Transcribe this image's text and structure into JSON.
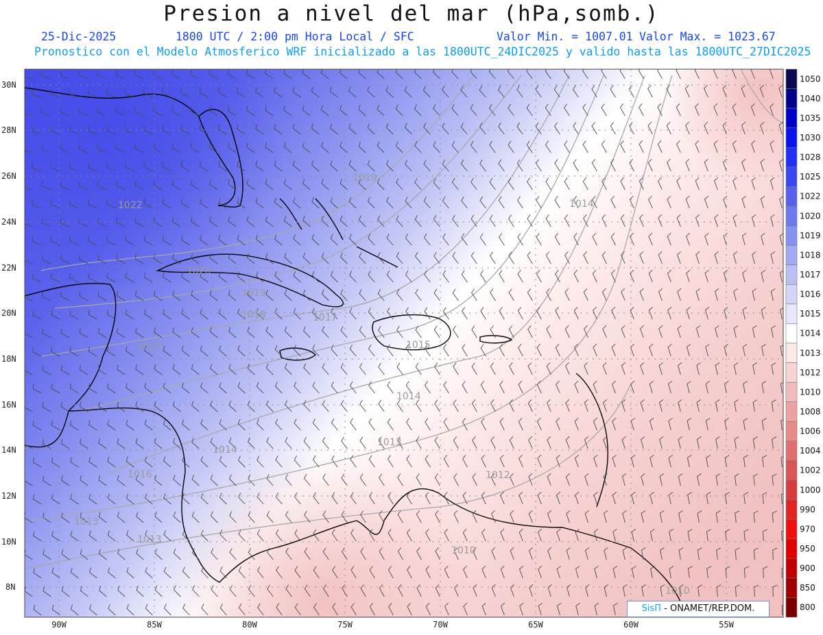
{
  "header": {
    "title": "Presion a nivel del mar (hPa,somb.)",
    "date": "25-Dic-2025",
    "time": "1800 UTC / 2:00 pm Hora Local / SFC",
    "min_value": "Valor Min. = 1007.01",
    "max_value": "Valor Max. = 1023.67",
    "description": "Pronostico con el Modelo Atmosferico WRF inicializado a las 1800UTC_24DIC2025 y valido hasta las  1800UTC_27DIC2025"
  },
  "map": {
    "lat_ticks": [
      "30N",
      "28N",
      "26N",
      "24N",
      "22N",
      "20N",
      "18N",
      "16N",
      "14N",
      "12N",
      "10N",
      "8N"
    ],
    "lon_ticks": [
      "90W",
      "85W",
      "80W",
      "75W",
      "70W",
      "65W",
      "60W",
      "55W"
    ],
    "isobar_labels": [
      "1022",
      "1019",
      "1014",
      "1020",
      "1019",
      "1018",
      "1017",
      "1017",
      "1015",
      "1014",
      "1013",
      "1014",
      "1016",
      "1012",
      "1013",
      "1013",
      "1010",
      "1010"
    ],
    "colors": {
      "high": "#5a62ec",
      "neutral": "#ffffff",
      "low": "#f4c2c2",
      "coast": "#000000",
      "wind_barb": "#555555",
      "grid": "#888888"
    }
  },
  "colorbar": {
    "levels": [
      "1050",
      "1040",
      "1035",
      "1030",
      "1028",
      "1025",
      "1022",
      "1020",
      "1019",
      "1018",
      "1017",
      "1016",
      "1015",
      "1014",
      "1013",
      "1012",
      "1010",
      "1008",
      "1006",
      "1004",
      "1002",
      "1000",
      "990",
      "970",
      "950",
      "900",
      "850",
      "800"
    ],
    "colors": [
      "#0a0a52",
      "#00008b",
      "#0000c8",
      "#0a14ee",
      "#2430f5",
      "#3c46f0",
      "#5660ec",
      "#6e78ee",
      "#8890f0",
      "#a2a8f2",
      "#babef5",
      "#d2d4f8",
      "#e6e7fb",
      "#ffffff",
      "#fde8e8",
      "#f8d4d4",
      "#f2bcbc",
      "#eca2a2",
      "#e68a8a",
      "#e07070",
      "#da5656",
      "#d63c3c",
      "#e02424",
      "#f01010",
      "#e00000",
      "#c00000",
      "#a00000",
      "#7a0000"
    ]
  },
  "credit": {
    "sis": "SisΠ",
    "org": " - ONAMET/REP.DOM."
  }
}
